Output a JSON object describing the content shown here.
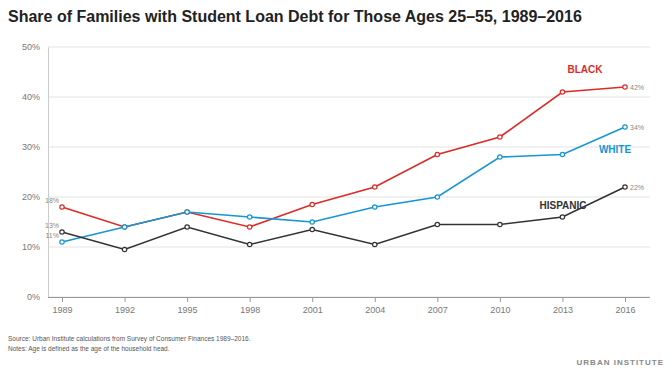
{
  "chart_data": {
    "type": "line",
    "title": "Share of Families with Student Loan Debt for Those Ages 25–55, 1989–2016",
    "categories": [
      "1989",
      "1992",
      "1995",
      "1998",
      "2001",
      "2004",
      "2007",
      "2010",
      "2013",
      "2016"
    ],
    "series": [
      {
        "name": "BLACK",
        "color": "#db2b27",
        "values": [
          18,
          14,
          17,
          14,
          18.5,
          22,
          28.5,
          32,
          41,
          42
        ],
        "value_labels": [
          "18%",
          null,
          null,
          null,
          null,
          null,
          null,
          null,
          null,
          "42%"
        ]
      },
      {
        "name": "WHITE",
        "color": "#1696d2",
        "values": [
          11,
          14,
          17,
          16,
          15,
          18,
          20,
          28,
          28.5,
          34
        ],
        "value_labels": [
          "11%",
          null,
          null,
          null,
          null,
          null,
          null,
          null,
          null,
          "34%"
        ]
      },
      {
        "name": "HISPANIC",
        "color": "#333333",
        "values": [
          13,
          9.5,
          14,
          10.5,
          13.5,
          10.5,
          14.5,
          14.5,
          16,
          22
        ],
        "value_labels": [
          "13%",
          null,
          null,
          null,
          null,
          null,
          null,
          null,
          null,
          "22%"
        ]
      }
    ],
    "ylim": [
      0,
      50
    ],
    "yticks": [
      {
        "value": 0,
        "label": "0%"
      },
      {
        "value": 10,
        "label": "10%"
      },
      {
        "value": 20,
        "label": "20%"
      },
      {
        "value": 30,
        "label": "30%"
      },
      {
        "value": 40,
        "label": "40%"
      },
      {
        "value": 50,
        "label": "50%"
      }
    ],
    "grid": true,
    "marker": "circle",
    "data_labels": true,
    "source": "Source: Urban Institute calculations from Survey of Consumer Finances 1989–2016.",
    "notes": "Notes: Age is defined as the age of the household head.",
    "credit": "URBAN INSTITUTE"
  }
}
